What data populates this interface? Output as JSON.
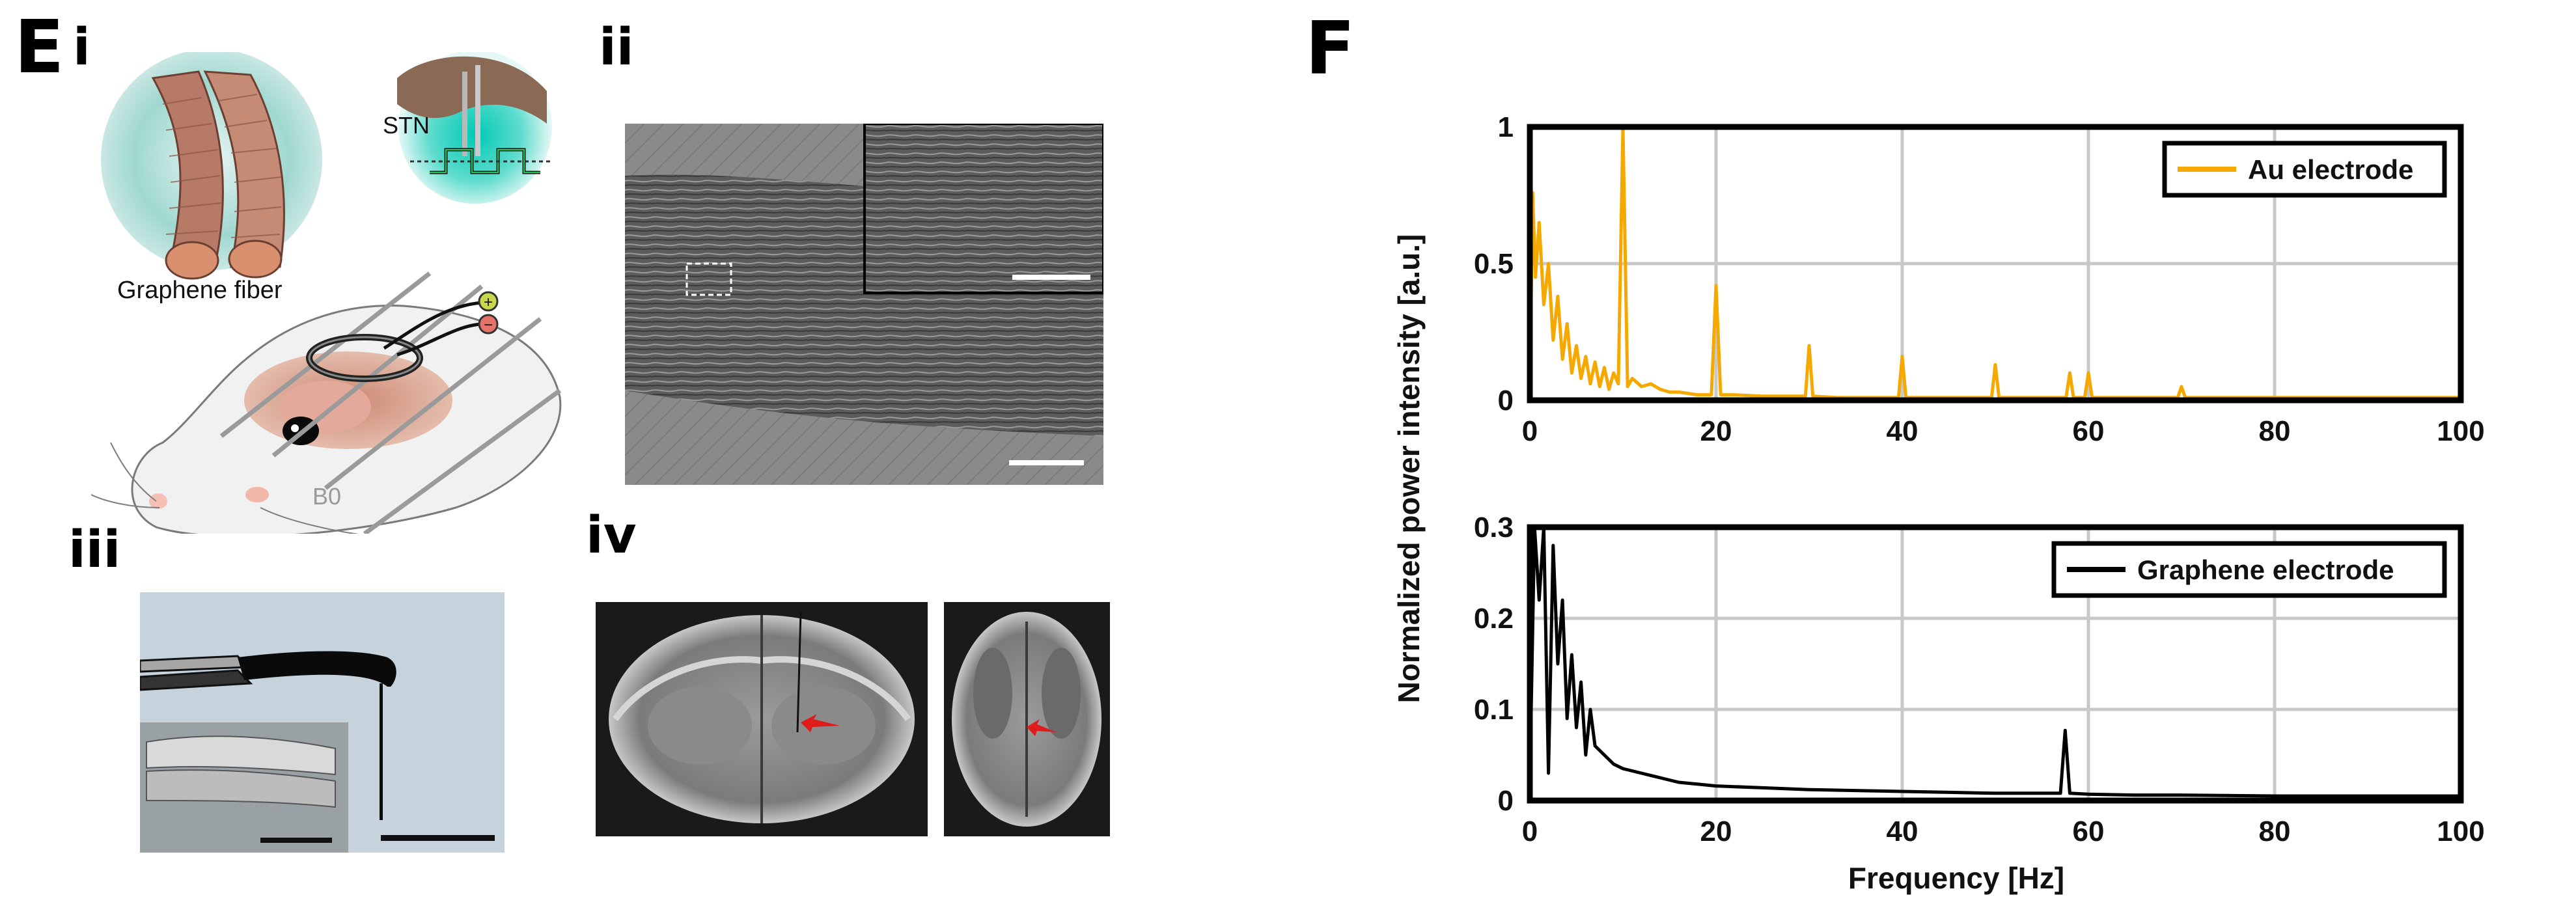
{
  "panel_e": {
    "label": "E",
    "sub_i": "i",
    "sub_ii": "ii",
    "sub_iii": "iii",
    "sub_iv": "iv",
    "stn_label": "STN",
    "fiber_label": "Graphene fiber",
    "b0_label": "B0",
    "plus_sign": "+",
    "minus_sign": "−"
  },
  "panel_f": {
    "label": "F"
  },
  "colors": {
    "au": "#F5A800",
    "graphene": "#000000",
    "grid": "#c8c8c8",
    "arrow": "#e01b1b"
  },
  "chart_data": [
    {
      "type": "line",
      "xlim": [
        0,
        100
      ],
      "ylim": [
        0,
        1
      ],
      "x_ticks": [
        "0",
        "20",
        "40",
        "60",
        "80",
        "100"
      ],
      "y_ticks": [
        "0",
        "0.5",
        "1"
      ],
      "legend": "Au electrode",
      "legend_position": "top-right",
      "grid": true,
      "series": [
        {
          "name": "Au electrode",
          "color": "#F5A800",
          "x": [
            0,
            0.3,
            0.6,
            1,
            1.5,
            2,
            2.5,
            3,
            3.5,
            4,
            4.5,
            5,
            5.5,
            6,
            6.5,
            7,
            7.5,
            8,
            8.5,
            9,
            9.5,
            10,
            10.5,
            11,
            12,
            13,
            14,
            15,
            16,
            18,
            19.5,
            20,
            20.5,
            22,
            25,
            28,
            29.6,
            30,
            30.4,
            33,
            36,
            39.6,
            40,
            40.4,
            45,
            49.6,
            50,
            50.4,
            55,
            57.6,
            58,
            58.4,
            59.6,
            60,
            60.4,
            65,
            69.6,
            70,
            70.4,
            75,
            80,
            85,
            90,
            95,
            100
          ],
          "y": [
            0.05,
            0.76,
            0.45,
            0.65,
            0.35,
            0.5,
            0.22,
            0.38,
            0.15,
            0.28,
            0.1,
            0.2,
            0.08,
            0.16,
            0.06,
            0.14,
            0.05,
            0.12,
            0.04,
            0.1,
            0.06,
            1.0,
            0.05,
            0.08,
            0.05,
            0.06,
            0.04,
            0.03,
            0.03,
            0.02,
            0.02,
            0.42,
            0.02,
            0.02,
            0.015,
            0.015,
            0.015,
            0.2,
            0.015,
            0.01,
            0.01,
            0.01,
            0.16,
            0.01,
            0.01,
            0.01,
            0.13,
            0.01,
            0.01,
            0.01,
            0.1,
            0.01,
            0.01,
            0.1,
            0.01,
            0.01,
            0.01,
            0.05,
            0.01,
            0.01,
            0.01,
            0.01,
            0.01,
            0.01,
            0.01
          ]
        }
      ]
    },
    {
      "type": "line",
      "xlim": [
        0,
        100
      ],
      "ylim": [
        0,
        0.3
      ],
      "x_ticks": [
        "0",
        "20",
        "40",
        "60",
        "80",
        "100"
      ],
      "y_ticks": [
        "0",
        "0.1",
        "0.2",
        "0.3"
      ],
      "xlabel": "Frequency [Hz]",
      "ylabel": "Normalized power intensity [a.u.]",
      "legend": "Graphene electrode",
      "legend_position": "top-right",
      "grid": true,
      "series": [
        {
          "name": "Graphene electrode",
          "color": "#000000",
          "x": [
            0,
            0.5,
            1,
            1.5,
            2,
            2.5,
            3,
            3.5,
            4,
            4.5,
            5,
            5.5,
            6,
            6.5,
            7,
            8,
            9,
            10,
            12,
            14,
            16,
            18,
            20,
            25,
            30,
            35,
            40,
            45,
            50,
            55,
            57,
            57.5,
            58,
            60,
            65,
            70,
            80,
            90,
            100
          ],
          "y": [
            0.02,
            0.3,
            0.22,
            0.3,
            0.03,
            0.28,
            0.15,
            0.22,
            0.09,
            0.16,
            0.08,
            0.13,
            0.05,
            0.1,
            0.06,
            0.05,
            0.04,
            0.035,
            0.03,
            0.025,
            0.02,
            0.018,
            0.016,
            0.014,
            0.012,
            0.011,
            0.01,
            0.009,
            0.008,
            0.008,
            0.008,
            0.077,
            0.008,
            0.007,
            0.006,
            0.006,
            0.005,
            0.005,
            0.005
          ]
        }
      ]
    }
  ]
}
